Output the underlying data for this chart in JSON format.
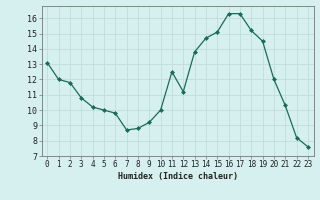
{
  "x": [
    0,
    1,
    2,
    3,
    4,
    5,
    6,
    7,
    8,
    9,
    10,
    11,
    12,
    13,
    14,
    15,
    16,
    17,
    18,
    19,
    20,
    21,
    22,
    23
  ],
  "y": [
    13.1,
    12.0,
    11.8,
    10.8,
    10.2,
    10.0,
    9.8,
    8.7,
    8.8,
    9.2,
    10.0,
    12.5,
    11.2,
    13.8,
    14.7,
    15.1,
    16.3,
    16.3,
    15.2,
    14.5,
    12.0,
    10.3,
    8.2,
    7.6
  ],
  "line_color": "#1a6b5a",
  "marker": "D",
  "marker_size": 2.0,
  "bg_color": "#d6f0ef",
  "grid_color": "#c0dedd",
  "xlabel": "Humidex (Indice chaleur)",
  "xlim": [
    -0.5,
    23.5
  ],
  "ylim": [
    7,
    16.8
  ],
  "yticks": [
    7,
    8,
    9,
    10,
    11,
    12,
    13,
    14,
    15,
    16
  ],
  "xticks": [
    0,
    1,
    2,
    3,
    4,
    5,
    6,
    7,
    8,
    9,
    10,
    11,
    12,
    13,
    14,
    15,
    16,
    17,
    18,
    19,
    20,
    21,
    22,
    23
  ],
  "xlabel_fontsize": 6.0,
  "tick_fontsize": 5.5,
  "ytick_fontsize": 6.0
}
